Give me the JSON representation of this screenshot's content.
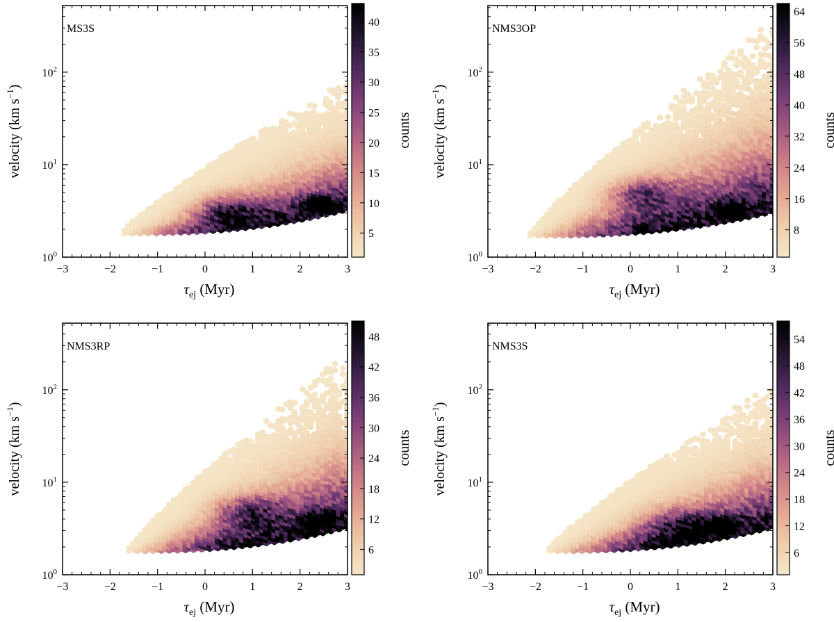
{
  "chart_data": [
    {
      "type": "heatmap",
      "subtype": "hexbin",
      "panel_label": "MS3S",
      "xlabel_symbol": "τ",
      "xlabel_sub": "ej",
      "xlabel_unit": " (Myr)",
      "ylabel_main": "velocity (km s",
      "ylabel_sup": "−1",
      "ylabel_close": ")",
      "xlim": [
        -3,
        3
      ],
      "ylim_log10": [
        0,
        2.72
      ],
      "x_ticks": [
        -3,
        -2,
        -1,
        0,
        1,
        2,
        3
      ],
      "x_tick_labels": [
        "−3",
        "−2",
        "−1",
        "0",
        "1",
        "2",
        "3"
      ],
      "y_ticks_log10": [
        0,
        1,
        2
      ],
      "y_tick_bases": [
        "10",
        "10",
        "10"
      ],
      "y_tick_exps": [
        "0",
        "1",
        "2"
      ],
      "colorbar_label": "counts",
      "colorbar_range": [
        1,
        43
      ],
      "colorbar_ticks": [
        5,
        10,
        15,
        20,
        25,
        30,
        35,
        40
      ],
      "distribution": {
        "x_start": -1.7,
        "v_floor": 1.8,
        "ridge_x": 2.4,
        "ridge_v": 3.8,
        "cluster_x": 0.5,
        "cluster_v": 3.2,
        "max_v": 75,
        "max_count": 42
      }
    },
    {
      "type": "heatmap",
      "subtype": "hexbin",
      "panel_label": "NMS3OP",
      "xlabel_symbol": "τ",
      "xlabel_sub": "ej",
      "xlabel_unit": " (Myr)",
      "ylabel_main": "velocity (km s",
      "ylabel_sup": "−1",
      "ylabel_close": ")",
      "xlim": [
        -3,
        3
      ],
      "ylim_log10": [
        0,
        2.72
      ],
      "x_ticks": [
        -3,
        -2,
        -1,
        0,
        1,
        2,
        3
      ],
      "x_tick_labels": [
        "−3",
        "−2",
        "−1",
        "0",
        "1",
        "2",
        "3"
      ],
      "y_ticks_log10": [
        0,
        1,
        2
      ],
      "y_tick_bases": [
        "10",
        "10",
        "10"
      ],
      "y_tick_exps": [
        "0",
        "1",
        "2"
      ],
      "colorbar_label": "counts",
      "colorbar_range": [
        1,
        66
      ],
      "colorbar_ticks": [
        8,
        16,
        24,
        32,
        40,
        48,
        56,
        64
      ],
      "distribution": {
        "x_start": -2.1,
        "v_floor": 1.7,
        "ridge_x": 2.1,
        "ridge_v": 3.3,
        "cluster_x": 0.3,
        "cluster_v": 5.0,
        "max_v": 300,
        "max_count": 64
      }
    },
    {
      "type": "heatmap",
      "subtype": "hexbin",
      "panel_label": "NMS3RP",
      "xlabel_symbol": "τ",
      "xlabel_sub": "ej",
      "xlabel_unit": " (Myr)",
      "ylabel_main": "velocity (km s",
      "ylabel_sup": "−1",
      "ylabel_close": ")",
      "xlim": [
        -3,
        3
      ],
      "ylim_log10": [
        0,
        2.72
      ],
      "x_ticks": [
        -3,
        -2,
        -1,
        0,
        1,
        2,
        3
      ],
      "x_tick_labels": [
        "−3",
        "−2",
        "−1",
        "0",
        "1",
        "2",
        "3"
      ],
      "y_ticks_log10": [
        0,
        1,
        2
      ],
      "y_tick_bases": [
        "10",
        "10",
        "10"
      ],
      "y_tick_exps": [
        "0",
        "1",
        "2"
      ],
      "colorbar_label": "counts",
      "colorbar_range": [
        1,
        51
      ],
      "colorbar_ticks": [
        6,
        12,
        18,
        24,
        30,
        36,
        42,
        48
      ],
      "distribution": {
        "x_start": -1.6,
        "v_floor": 1.8,
        "ridge_x": 2.4,
        "ridge_v": 4.0,
        "cluster_x": 1.0,
        "cluster_v": 5.0,
        "max_v": 210,
        "max_count": 50
      }
    },
    {
      "type": "heatmap",
      "subtype": "hexbin",
      "panel_label": "NMS3S",
      "xlabel_symbol": "τ",
      "xlabel_sub": "ej",
      "xlabel_unit": " (Myr)",
      "ylabel_main": "velocity (km s",
      "ylabel_sup": "−1",
      "ylabel_close": ")",
      "xlim": [
        -3,
        3
      ],
      "ylim_log10": [
        0,
        2.72
      ],
      "x_ticks": [
        -3,
        -2,
        -1,
        0,
        1,
        2,
        3
      ],
      "x_tick_labels": [
        "−3",
        "−2",
        "−1",
        "0",
        "1",
        "2",
        "3"
      ],
      "y_ticks_log10": [
        0,
        1,
        2
      ],
      "y_tick_bases": [
        "10",
        "10",
        "10"
      ],
      "y_tick_exps": [
        "0",
        "1",
        "2"
      ],
      "colorbar_label": "counts",
      "colorbar_range": [
        1,
        58
      ],
      "colorbar_ticks": [
        6,
        12,
        18,
        24,
        30,
        36,
        42,
        48,
        54
      ],
      "distribution": {
        "x_start": -1.7,
        "v_floor": 1.8,
        "ridge_x": 2.0,
        "ridge_v": 3.5,
        "cluster_x": 1.2,
        "cluster_v": 3.5,
        "max_v": 100,
        "max_count": 56
      }
    }
  ],
  "colormap": [
    "#f5e6c8",
    "#eeccaa",
    "#e3a592",
    "#cc7e86",
    "#a55a80",
    "#7a3f78",
    "#4e2a5c",
    "#231530",
    "#000000"
  ]
}
